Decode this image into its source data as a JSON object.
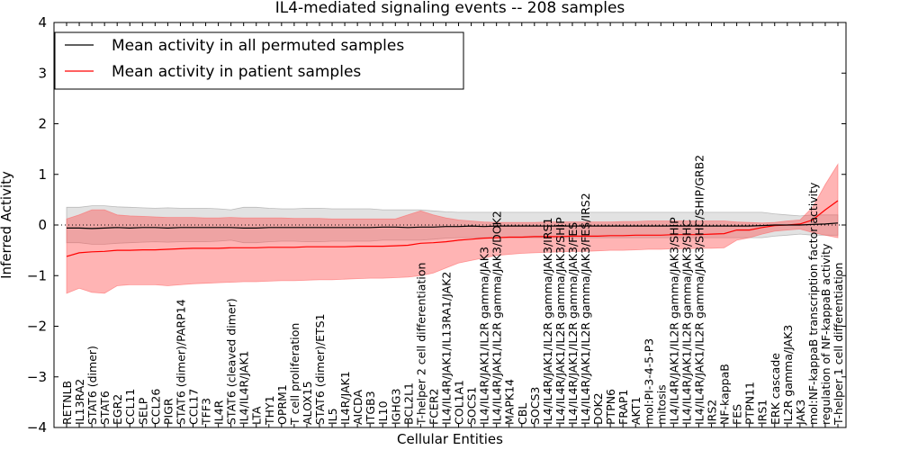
{
  "chart_data": {
    "type": "line",
    "title": "IL4-mediated signaling events -- 208 samples",
    "xlabel": "Cellular Entities",
    "ylabel": "Inferred Activity",
    "ylim": [
      -4,
      4
    ],
    "yticks": [
      -4,
      -3,
      -2,
      -1,
      0,
      1,
      2,
      3,
      4
    ],
    "reference_line": 0,
    "legend_position": "top-left",
    "categories": [
      "RETNLB",
      "IL13RA2",
      "STAT6 (dimer)",
      "STAT6",
      "EGR2",
      "CCL11",
      "SELP",
      "CCL26",
      "PIGR",
      "STAT6 (dimer)/PARP14",
      "CCL17",
      "TFF3",
      "IL4R",
      "STAT6 (cleaved dimer)",
      "IL4/IL4R/JAK1",
      "LTA",
      "THY1",
      "OPRM1",
      "T cell proliferation",
      "ALOX15",
      "STAT6 (dimer)/ETS1",
      "IL5",
      "IL4R/JAK1",
      "AICDA",
      "ITGB3",
      "IL10",
      "IGHG3",
      "BCL2L1",
      "T-helper 2 cell differentiation",
      "FCER2",
      "IL4/IL4R/JAK1/IL13RA1/JAK2",
      "COL1A1",
      "SOCS1",
      "IL4/IL4R/JAK1/IL2R gamma/JAK3",
      "IL4/IL4R/JAK1/IL2R gamma/JAK3/DOK2",
      "MAPK14",
      "CBL",
      "SOCS3",
      "IL4/IL4R/JAK1/IL2R gamma/JAK3/IRS1",
      "IL4/IL4R/JAK1/IL2R gamma/JAK3/SHIP",
      "IL4/IL4R/JAK1/IL2R gamma/JAK3/FES",
      "IL4/IL4R/JAK1/IL2R gamma/JAK3/FES/IRS2",
      "DOK2",
      "PTPN6",
      "FRAP1",
      "AKT1",
      "mol:PI-3-4-5-P3",
      "mitosis",
      "IL4/IL4R/JAK1/IL2R gamma/JAK3/SHIP",
      "IL4/IL4R/JAK1/IL2R gamma/JAK3/SHC",
      "IL4/IL4R/JAK1/IL2R gamma/JAK3/SHC/SHIP/GRB2",
      "IRS2",
      "NF-kappaB",
      "FES",
      "PTPN11",
      "IRS1",
      "ERK cascade",
      "IL2R gamma/JAK3",
      "JAK3",
      "mol:NF-kappaB transcription factor activity",
      "regulation of NF-kappaB activity",
      "T-helper 1 cell differentiation"
    ],
    "series": [
      {
        "name": "Mean activity in all permuted samples",
        "color": "#000000",
        "values": [
          -0.06,
          -0.06,
          -0.07,
          -0.06,
          -0.05,
          -0.06,
          -0.05,
          -0.05,
          -0.06,
          -0.05,
          -0.05,
          -0.05,
          -0.05,
          -0.05,
          -0.06,
          -0.06,
          -0.05,
          -0.05,
          -0.05,
          -0.05,
          -0.05,
          -0.05,
          -0.05,
          -0.05,
          -0.05,
          -0.04,
          -0.04,
          -0.05,
          -0.04,
          -0.04,
          -0.03,
          -0.03,
          -0.02,
          -0.03,
          -0.02,
          -0.02,
          -0.02,
          -0.02,
          -0.02,
          -0.02,
          -0.02,
          -0.02,
          -0.02,
          -0.02,
          -0.02,
          -0.02,
          -0.02,
          -0.02,
          -0.02,
          -0.02,
          -0.02,
          -0.02,
          -0.02,
          -0.02,
          -0.02,
          -0.01,
          0.0,
          0.0,
          0.0,
          0.01,
          0.02,
          0.04
        ],
        "band_upper": [
          0.35,
          0.35,
          0.38,
          0.38,
          0.36,
          0.35,
          0.34,
          0.33,
          0.34,
          0.33,
          0.33,
          0.33,
          0.32,
          0.3,
          0.35,
          0.35,
          0.33,
          0.32,
          0.32,
          0.33,
          0.33,
          0.32,
          0.32,
          0.32,
          0.32,
          0.3,
          0.3,
          0.3,
          0.3,
          0.28,
          0.26,
          0.25,
          0.25,
          0.25,
          0.25,
          0.25,
          0.25,
          0.25,
          0.25,
          0.25,
          0.25,
          0.25,
          0.25,
          0.25,
          0.25,
          0.25,
          0.25,
          0.25,
          0.25,
          0.25,
          0.25,
          0.25,
          0.25,
          0.25,
          0.25,
          0.25,
          0.22,
          0.2,
          0.18,
          0.2,
          0.2,
          0.2
        ],
        "band_lower": [
          -0.35,
          -0.35,
          -0.38,
          -0.38,
          -0.36,
          -0.35,
          -0.34,
          -0.33,
          -0.34,
          -0.33,
          -0.33,
          -0.33,
          -0.32,
          -0.3,
          -0.35,
          -0.35,
          -0.33,
          -0.32,
          -0.32,
          -0.33,
          -0.33,
          -0.32,
          -0.32,
          -0.32,
          -0.32,
          -0.3,
          -0.3,
          -0.3,
          -0.3,
          -0.28,
          -0.26,
          -0.25,
          -0.25,
          -0.25,
          -0.25,
          -0.25,
          -0.25,
          -0.25,
          -0.25,
          -0.25,
          -0.25,
          -0.25,
          -0.25,
          -0.25,
          -0.25,
          -0.25,
          -0.25,
          -0.25,
          -0.25,
          -0.25,
          -0.25,
          -0.25,
          -0.25,
          -0.25,
          -0.25,
          -0.25,
          -0.22,
          -0.2,
          -0.18,
          -0.2,
          -0.2,
          -0.2
        ]
      },
      {
        "name": "Mean activity in patient samples",
        "color": "#ff0000",
        "values": [
          -0.62,
          -0.55,
          -0.53,
          -0.52,
          -0.5,
          -0.5,
          -0.49,
          -0.49,
          -0.48,
          -0.47,
          -0.46,
          -0.46,
          -0.46,
          -0.45,
          -0.45,
          -0.45,
          -0.44,
          -0.44,
          -0.44,
          -0.43,
          -0.43,
          -0.43,
          -0.43,
          -0.42,
          -0.42,
          -0.42,
          -0.41,
          -0.4,
          -0.36,
          -0.35,
          -0.33,
          -0.3,
          -0.28,
          -0.26,
          -0.25,
          -0.24,
          -0.24,
          -0.23,
          -0.23,
          -0.23,
          -0.22,
          -0.22,
          -0.22,
          -0.21,
          -0.21,
          -0.2,
          -0.2,
          -0.2,
          -0.19,
          -0.19,
          -0.19,
          -0.18,
          -0.17,
          -0.1,
          -0.1,
          -0.05,
          -0.01,
          0.0,
          0.02,
          0.1,
          0.3,
          0.48
        ],
        "band_upper": [
          0.12,
          0.2,
          0.3,
          0.3,
          0.2,
          0.18,
          0.17,
          0.16,
          0.15,
          0.15,
          0.15,
          0.14,
          0.14,
          0.15,
          0.14,
          0.14,
          0.14,
          0.14,
          0.13,
          0.13,
          0.13,
          0.12,
          0.12,
          0.12,
          0.12,
          0.12,
          0.12,
          0.2,
          0.28,
          0.2,
          0.14,
          0.1,
          0.08,
          0.06,
          0.05,
          0.05,
          0.05,
          0.05,
          0.06,
          0.06,
          0.06,
          0.06,
          0.06,
          0.06,
          0.07,
          0.07,
          0.08,
          0.08,
          0.08,
          0.08,
          0.08,
          0.08,
          0.08,
          0.06,
          0.05,
          0.04,
          0.05,
          0.08,
          0.1,
          0.35,
          0.8,
          1.2
        ],
        "band_lower": [
          -1.35,
          -1.25,
          -1.33,
          -1.35,
          -1.2,
          -1.18,
          -1.18,
          -1.18,
          -1.2,
          -1.18,
          -1.16,
          -1.15,
          -1.14,
          -1.13,
          -1.12,
          -1.12,
          -1.11,
          -1.1,
          -1.1,
          -1.09,
          -1.08,
          -1.08,
          -1.07,
          -1.06,
          -1.05,
          -1.05,
          -1.04,
          -1.03,
          -1.0,
          -0.95,
          -0.85,
          -0.75,
          -0.7,
          -0.65,
          -0.6,
          -0.58,
          -0.56,
          -0.55,
          -0.54,
          -0.53,
          -0.52,
          -0.52,
          -0.51,
          -0.5,
          -0.5,
          -0.49,
          -0.48,
          -0.48,
          -0.47,
          -0.47,
          -0.46,
          -0.46,
          -0.45,
          -0.3,
          -0.25,
          -0.18,
          -0.12,
          -0.1,
          -0.08,
          -0.15,
          -0.2,
          -0.25
        ]
      }
    ]
  }
}
